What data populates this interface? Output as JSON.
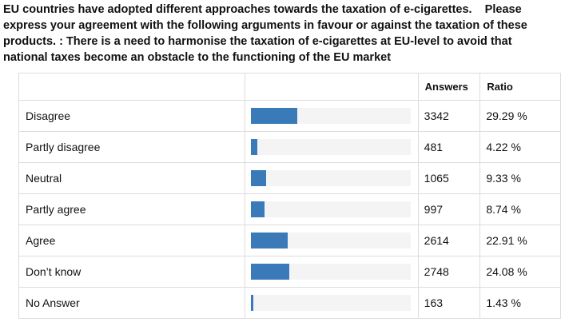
{
  "question": "EU countries have adopted different approaches towards the taxation of e-cigarettes.    Please express your agreement with the following arguments in favour or against the taxation of these products. : There is a need to harmonise the taxation of e-cigarettes at EU-level to avoid that national taxes become an obstacle to the functioning of the EU market",
  "headers": {
    "answers": "Answers",
    "ratio": "Ratio"
  },
  "colors": {
    "bar": "#3a7ab8",
    "track": "#f4f4f4",
    "border": "#dcdcdc"
  },
  "chart_data": {
    "type": "bar",
    "orientation": "horizontal",
    "categories": [
      "Disagree",
      "Partly disagree",
      "Neutral",
      "Partly agree",
      "Agree",
      "Don’t know",
      "No Answer"
    ],
    "answers": [
      "3342",
      "481",
      "1065",
      "997",
      "2614",
      "2748",
      "163"
    ],
    "ratios": [
      "29.29 %",
      "4.22 %",
      "9.33 %",
      "8.74 %",
      "22.91 %",
      "24.08 %",
      "1.43 %"
    ],
    "values": [
      29.29,
      4.22,
      9.33,
      8.74,
      22.91,
      24.08,
      1.43
    ],
    "xlim": [
      0,
      100
    ]
  }
}
